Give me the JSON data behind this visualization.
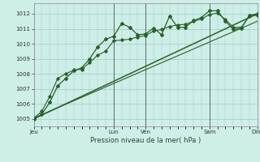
{
  "background_color": "#ceeee8",
  "grid_color": "#9eccc4",
  "line_color": "#2a602a",
  "marker_color": "#2a602a",
  "title": "Pression niveau de la mer( hPa )",
  "ylabel_ticks": [
    1005,
    1006,
    1007,
    1008,
    1009,
    1010,
    1011,
    1012
  ],
  "ylim": [
    1004.5,
    1012.7
  ],
  "day_labels": [
    "Jeu",
    "Lun",
    "Ven",
    "Sam",
    "Dim"
  ],
  "day_positions": [
    0,
    60,
    84,
    132,
    168
  ],
  "vline_positions": [
    60,
    84,
    132,
    168
  ],
  "total_hours": 168,
  "series1": {
    "x": [
      0,
      6,
      12,
      18,
      24,
      30,
      36,
      42,
      48,
      54,
      60,
      66,
      72,
      78,
      84,
      90,
      96,
      102,
      108,
      114,
      120,
      126,
      132,
      138,
      144,
      150,
      156,
      162,
      168
    ],
    "y": [
      1005.0,
      1005.3,
      1006.1,
      1007.2,
      1007.7,
      1008.2,
      1008.4,
      1009.0,
      1009.8,
      1010.3,
      1010.5,
      1011.35,
      1011.1,
      1010.6,
      1010.65,
      1011.05,
      1010.6,
      1011.85,
      1011.1,
      1011.1,
      1011.55,
      1011.75,
      1012.2,
      1012.2,
      1011.5,
      1010.95,
      1011.05,
      1011.9,
      1012.0
    ]
  },
  "series2": {
    "x": [
      0,
      6,
      12,
      18,
      24,
      30,
      36,
      42,
      48,
      54,
      60,
      66,
      72,
      78,
      84,
      90,
      96,
      102,
      108,
      114,
      120,
      126,
      132,
      138,
      144,
      150,
      156,
      162,
      168
    ],
    "y": [
      1005.05,
      1005.5,
      1006.5,
      1007.7,
      1008.0,
      1008.25,
      1008.3,
      1008.75,
      1009.25,
      1009.5,
      1010.2,
      1010.25,
      1010.3,
      1010.45,
      1010.55,
      1010.85,
      1010.95,
      1011.15,
      1011.25,
      1011.3,
      1011.5,
      1011.65,
      1011.95,
      1012.05,
      1011.6,
      1011.1,
      1011.1,
      1011.85,
      1011.9
    ]
  },
  "series3_linear": {
    "x": [
      0,
      168
    ],
    "y": [
      1005.0,
      1012.0
    ]
  },
  "series4_linear": {
    "x": [
      0,
      168
    ],
    "y": [
      1005.05,
      1011.5
    ]
  }
}
